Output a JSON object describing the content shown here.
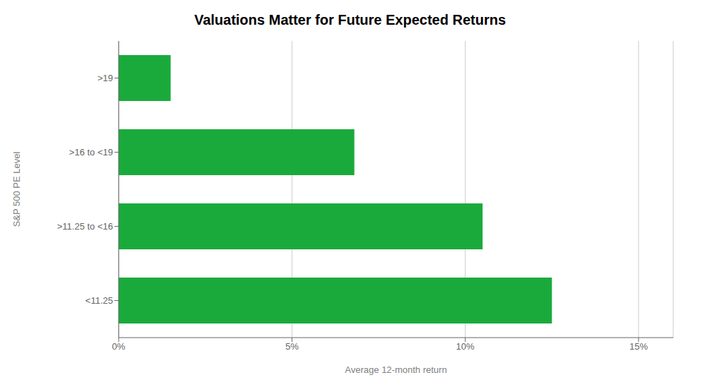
{
  "chart_data": {
    "type": "bar",
    "orientation": "horizontal",
    "title": "Valuations Matter for Future Expected Returns",
    "xlabel": "Average 12-month return",
    "ylabel": "S&P 500 PE Level",
    "categories": [
      ">19",
      ">16 to <19",
      ">11.25 to <16",
      "<11.25"
    ],
    "values": [
      0.015,
      0.068,
      0.105,
      0.125
    ],
    "color": "#1aaa3c",
    "xlim": [
      0,
      0.16
    ],
    "xticks": [
      {
        "value": 0,
        "label": "0%"
      },
      {
        "value": 0.05,
        "label": "5%"
      },
      {
        "value": 0.1,
        "label": "10%"
      },
      {
        "value": 0.15,
        "label": "15%"
      }
    ],
    "grid": true
  }
}
